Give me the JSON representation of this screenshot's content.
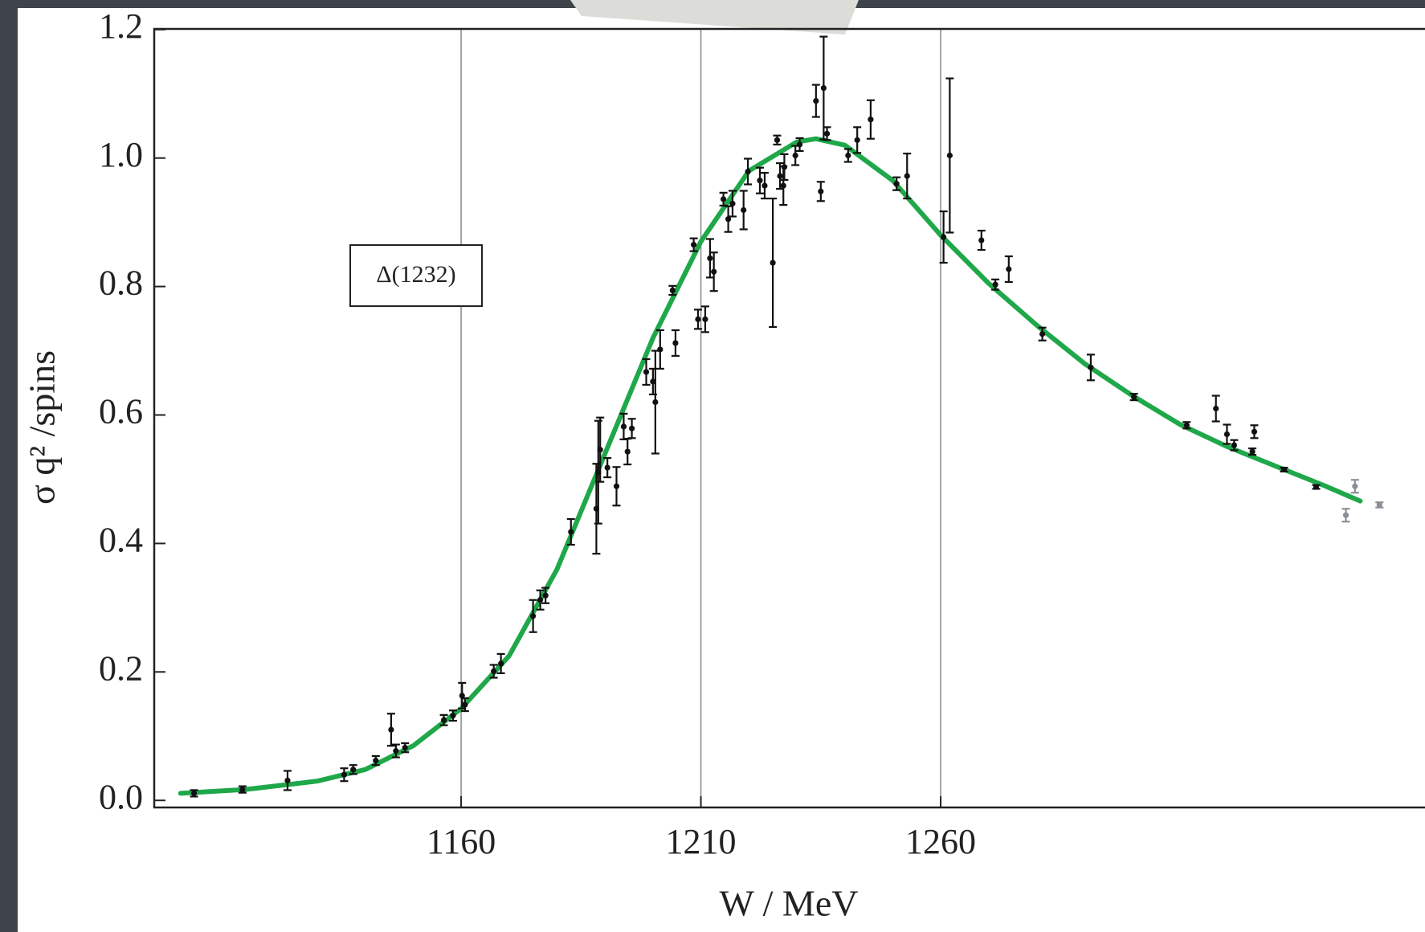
{
  "chart_data": {
    "type": "scatter",
    "x_label": "W / MeV",
    "y_label": "σ q² /spins",
    "annotation": "Δ(1232)",
    "xlim": [
      1096,
      1361
    ],
    "ylim": [
      -0.011,
      1.201
    ],
    "xticks": [
      1160,
      1210,
      1260
    ],
    "yticks": [
      {
        "value": 0,
        "label": "0.0"
      },
      0.2,
      0.4,
      0.6,
      0.8,
      {
        "value": 1,
        "label": "1.0"
      },
      1.2
    ],
    "grid": true,
    "series": [
      {
        "type": "line",
        "color": "#1fa84a",
        "x": [
          1101.5,
          1115,
          1130,
          1140,
          1150,
          1160,
          1170,
          1180,
          1190,
          1200,
          1210,
          1220,
          1230,
          1234,
          1240,
          1250,
          1260,
          1270,
          1280,
          1290,
          1300,
          1310,
          1320,
          1330,
          1340,
          1347.5
        ],
        "values": [
          0.011,
          0.017,
          0.03,
          0.048,
          0.085,
          0.143,
          0.225,
          0.36,
          0.54,
          0.72,
          0.87,
          0.98,
          1.025,
          1.03,
          1.02,
          0.965,
          0.88,
          0.805,
          0.74,
          0.68,
          0.63,
          0.585,
          0.55,
          0.52,
          0.49,
          0.466
        ]
      },
      {
        "type": "errorbar",
        "color": "#111111",
        "x": [
          1104.3,
          1114.4,
          1123.8,
          1135.6,
          1137.5,
          1142.2,
          1145.4,
          1146.4,
          1148.3,
          1156.4,
          1158.3,
          1160.2,
          1160.8,
          1166.8,
          1168.3,
          1175,
          1176.5,
          1177.6,
          1182.9,
          1188.2,
          1188.6,
          1189,
          1190.5,
          1192.4,
          1193.9,
          1194.7,
          1195.6,
          1198.6,
          1200,
          1200.5,
          1201.5,
          1204.7,
          1204.1,
          1208.5,
          1209.4,
          1210.9,
          1211.9,
          1212.7,
          1214.7,
          1215.7,
          1216.6,
          1218.9,
          1219.8,
          1222.3,
          1223.3,
          1225,
          1225.9,
          1226.5,
          1227.4,
          1227.2,
          1229.7,
          1230.6,
          1234,
          1235,
          1235.6,
          1236.3,
          1240.7,
          1242.6,
          1245.4,
          1250.8,
          1253,
          1260.6,
          1261.9,
          1268.5,
          1271.4,
          1274.2,
          1281.2,
          1291.3,
          1300.3,
          1311.3,
          1317.4,
          1319.7,
          1321.2,
          1325,
          1325.4,
          1331.6,
          1338.3
        ],
        "values": [
          0.011,
          0.017,
          0.031,
          0.04,
          0.048,
          0.062,
          0.11,
          0.077,
          0.082,
          0.125,
          0.132,
          0.163,
          0.149,
          0.201,
          0.213,
          0.287,
          0.312,
          0.319,
          0.418,
          0.454,
          0.511,
          0.546,
          0.518,
          0.489,
          0.582,
          0.543,
          0.579,
          0.667,
          0.652,
          0.62,
          0.702,
          0.712,
          0.794,
          0.865,
          0.749,
          0.749,
          0.844,
          0.823,
          0.936,
          0.905,
          0.929,
          0.919,
          0.979,
          0.965,
          0.957,
          0.837,
          1.028,
          0.972,
          0.986,
          0.957,
          1.004,
          1.021,
          1.089,
          0.948,
          1.109,
          1.038,
          1.004,
          1.028,
          1.06,
          0.96,
          0.972,
          0.877,
          1.004,
          0.872,
          0.803,
          0.827,
          0.726,
          0.674,
          0.628,
          0.584,
          0.61,
          0.57,
          0.553,
          0.543,
          0.574,
          0.515,
          0.488
        ],
        "errors": [
          0.005,
          0.005,
          0.015,
          0.01,
          0.007,
          0.007,
          0.025,
          0.01,
          0.007,
          0.008,
          0.008,
          0.02,
          0.01,
          0.01,
          0.015,
          0.025,
          0.015,
          0.012,
          0.02,
          0.07,
          0.08,
          0.05,
          0.015,
          0.03,
          0.02,
          0.02,
          0.015,
          0.02,
          0.02,
          0.08,
          0.03,
          0.02,
          0.007,
          0.01,
          0.015,
          0.02,
          0.03,
          0.03,
          0.01,
          0.02,
          0.02,
          0.03,
          0.02,
          0.02,
          0.02,
          0.1,
          0.007,
          0.02,
          0.02,
          0.03,
          0.015,
          0.01,
          0.025,
          0.015,
          0.08,
          0.01,
          0.01,
          0.02,
          0.03,
          0.01,
          0.035,
          0.04,
          0.12,
          0.015,
          0.008,
          0.02,
          0.01,
          0.02,
          0.005,
          0.005,
          0.02,
          0.015,
          0.008,
          0.005,
          0.01,
          0.003,
          0.003
        ]
      },
      {
        "type": "errorbar",
        "color": "#8a8f96",
        "x": [
          1344.5,
          1346.4,
          1351.5
        ],
        "values": [
          0.444,
          0.489,
          0.46
        ],
        "errors": [
          0.01,
          0.01,
          0.004
        ]
      }
    ]
  }
}
